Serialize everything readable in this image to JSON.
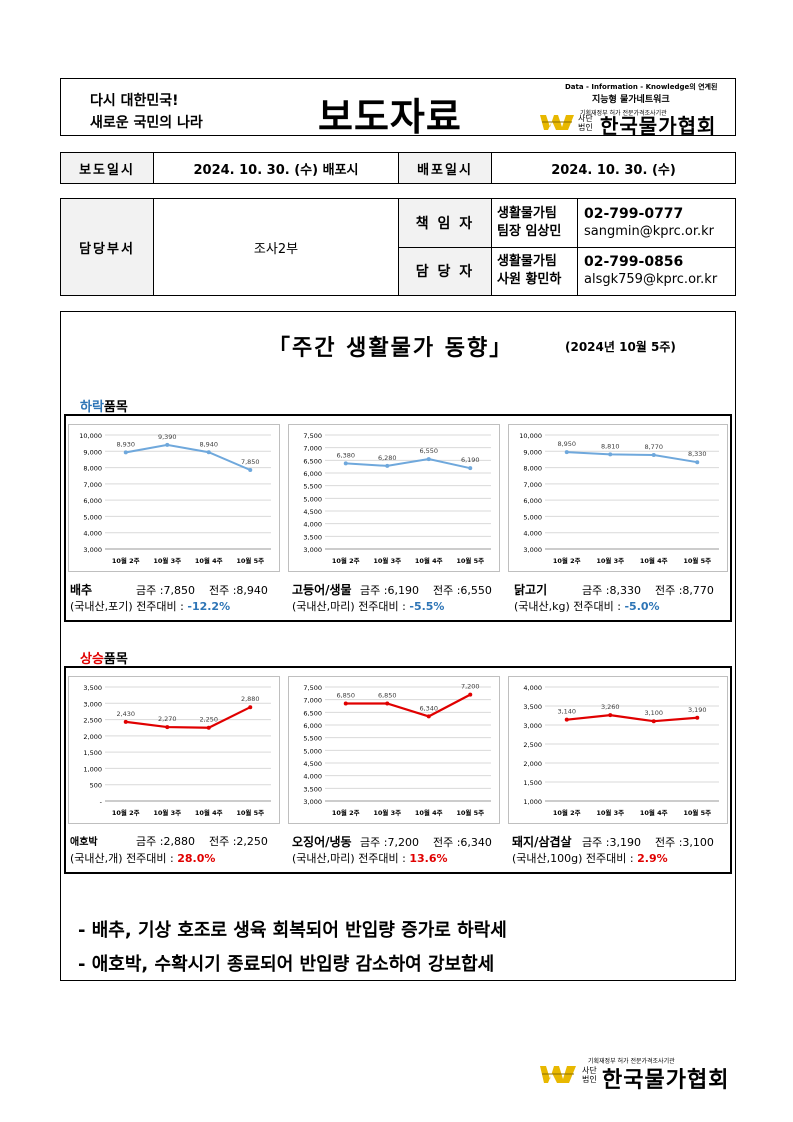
{
  "header": {
    "slogan_line1": "다시 대한민국!",
    "slogan_line2": "새로운 국민의 나라",
    "title": "보도자료",
    "tagline_top": "Data - Information - Knowledge의 연계된",
    "tagline_bottom": "지능형 물가네트워크",
    "org_note": "기획재정부 허가 전문가격조사기관",
    "org_prefix": "사단법인",
    "org_name": "한국물가협회"
  },
  "release": {
    "report_date_label": "보도일시",
    "report_date_value": "2024. 10. 30. (수) 배포시",
    "dist_date_label": "배포일시",
    "dist_date_value": "2024. 10. 30. (수)"
  },
  "contacts": {
    "dept_label": "담당부서",
    "dept_value": "조사2부",
    "rows": [
      {
        "role": "책 임 자",
        "team": "생활물가팀",
        "person": "팀장 임상민",
        "phone": "02-799-0777",
        "email": "sangmin@kprc.or.kr"
      },
      {
        "role": "담 당 자",
        "team": "생활물가팀",
        "person": "사원 황민하",
        "phone": "02-799-0856",
        "email": "alsgk759@kprc.or.kr"
      }
    ]
  },
  "main": {
    "title": "「주간 생활물가 동향」",
    "subtitle": "(2024년 10월 5주)",
    "falling_label_colored": "하락",
    "falling_label_rest": "품목",
    "rising_label_colored": "상승",
    "rising_label_rest": "품목",
    "this_week_label": "금주 :",
    "last_week_label": "전주 :",
    "wow_label": "전주대비 :",
    "falling_color": "#2e75b6",
    "rising_color": "#e00000",
    "bullets": [
      "- 배추, 기상 호조로 생육 회복되어 반입량 증가로 하락세",
      "- 애호박, 수확시기 종료되어 반입량 감소하여 강보합세"
    ]
  },
  "chart_data": [
    {
      "type": "line",
      "group": "falling",
      "item": "배추",
      "unit": "(국내산,포기)",
      "this_week": "7,850",
      "last_week": "8,940",
      "change": "-12.2%",
      "categories": [
        "10월 2주",
        "10월 3주",
        "10월 4주",
        "10월 5주"
      ],
      "values": [
        8930,
        9390,
        8940,
        7850
      ],
      "labels": [
        "8,930",
        "9,390",
        "8,940",
        "7,850"
      ],
      "ylim": [
        3000,
        10000
      ],
      "ticks": [
        "3,000",
        "4,000",
        "5,000",
        "6,000",
        "7,000",
        "8,000",
        "9,000",
        "10,000"
      ],
      "tick_values": [
        3000,
        4000,
        5000,
        6000,
        7000,
        8000,
        9000,
        10000
      ],
      "color": "#6fa8dc"
    },
    {
      "type": "line",
      "group": "falling",
      "item": "고등어/생물",
      "unit": "(국내산,마리)",
      "this_week": "6,190",
      "last_week": "6,550",
      "change": "-5.5%",
      "categories": [
        "10월 2주",
        "10월 3주",
        "10월 4주",
        "10월 5주"
      ],
      "values": [
        6380,
        6280,
        6550,
        6190
      ],
      "labels": [
        "6,380",
        "6,280",
        "6,550",
        "6,190"
      ],
      "ylim": [
        3000,
        7500
      ],
      "ticks": [
        "3,000",
        "3,500",
        "4,000",
        "4,500",
        "5,000",
        "5,500",
        "6,000",
        "6,500",
        "7,000",
        "7,500"
      ],
      "tick_values": [
        3000,
        3500,
        4000,
        4500,
        5000,
        5500,
        6000,
        6500,
        7000,
        7500
      ],
      "color": "#6fa8dc"
    },
    {
      "type": "line",
      "group": "falling",
      "item": "닭고기",
      "unit": "(국내산,kg)",
      "this_week": "8,330",
      "last_week": "8,770",
      "change": "-5.0%",
      "categories": [
        "10월 2주",
        "10월 3주",
        "10월 4주",
        "10월 5주"
      ],
      "values": [
        8950,
        8810,
        8770,
        8330
      ],
      "labels": [
        "8,950",
        "8,810",
        "8,770",
        "8,330"
      ],
      "ylim": [
        3000,
        10000
      ],
      "ticks": [
        "3,000",
        "4,000",
        "5,000",
        "6,000",
        "7,000",
        "8,000",
        "9,000",
        "10,000"
      ],
      "tick_values": [
        3000,
        4000,
        5000,
        6000,
        7000,
        8000,
        9000,
        10000
      ],
      "color": "#6fa8dc"
    },
    {
      "type": "line",
      "group": "rising",
      "item": "애호박",
      "unit": "(국내산,개)",
      "this_week": "2,880",
      "last_week": "2,250",
      "change": "28.0%",
      "categories": [
        "10월 2주",
        "10월 3주",
        "10월 4주",
        "10월 5주"
      ],
      "values": [
        2430,
        2270,
        2250,
        2880
      ],
      "labels": [
        "2,430",
        "2,270",
        "2,250",
        "2,880"
      ],
      "ylim": [
        0,
        3500
      ],
      "ticks": [
        "-",
        "500",
        "1,000",
        "1,500",
        "2,000",
        "2,500",
        "3,000",
        "3,500"
      ],
      "tick_values": [
        0,
        500,
        1000,
        1500,
        2000,
        2500,
        3000,
        3500
      ],
      "color": "#e00000"
    },
    {
      "type": "line",
      "group": "rising",
      "item": "오징어/냉동",
      "unit": "(국내산,마리)",
      "this_week": "7,200",
      "last_week": "6,340",
      "change": "13.6%",
      "categories": [
        "10월 2주",
        "10월 3주",
        "10월 4주",
        "10월 5주"
      ],
      "values": [
        6850,
        6850,
        6340,
        7200
      ],
      "labels": [
        "6,850",
        "6,850",
        "6,340",
        "7,200"
      ],
      "ylim": [
        3000,
        7500
      ],
      "ticks": [
        "3,000",
        "3,500",
        "4,000",
        "4,500",
        "5,000",
        "5,500",
        "6,000",
        "6,500",
        "7,000",
        "7,500"
      ],
      "tick_values": [
        3000,
        3500,
        4000,
        4500,
        5000,
        5500,
        6000,
        6500,
        7000,
        7500
      ],
      "color": "#e00000"
    },
    {
      "type": "line",
      "group": "rising",
      "item": "돼지/삼겹살",
      "unit": "(국내산,100g)",
      "this_week": "3,190",
      "last_week": "3,100",
      "change": "2.9%",
      "categories": [
        "10월 2주",
        "10월 3주",
        "10월 4주",
        "10월 5주"
      ],
      "values": [
        3140,
        3260,
        3100,
        3190
      ],
      "labels": [
        "3,140",
        "3,260",
        "3,100",
        "3,190"
      ],
      "ylim": [
        1000,
        4000
      ],
      "ticks": [
        "1,000",
        "1,500",
        "2,000",
        "2,500",
        "3,000",
        "3,500",
        "4,000"
      ],
      "tick_values": [
        1000,
        1500,
        2000,
        2500,
        3000,
        3500,
        4000
      ],
      "color": "#e00000"
    }
  ],
  "footer": {
    "org_note": "기획재정부 허가 전문가격조사기관",
    "org_prefix": "사단법인",
    "org_name": "한국물가협회"
  }
}
